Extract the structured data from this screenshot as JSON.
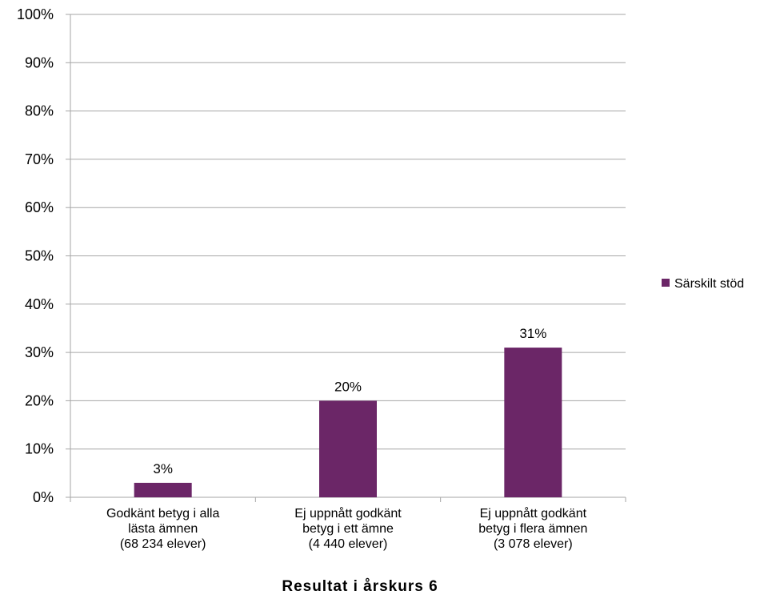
{
  "chart_data": {
    "type": "bar",
    "categories": [
      [
        "Godkänt betyg i alla",
        "lästa ämnen",
        "(68 234 elever)"
      ],
      [
        "Ej uppnått godkänt",
        "betyg i ett ämne",
        "(4 440 elever)"
      ],
      [
        "Ej uppnått godkänt",
        "betyg i flera ämnen",
        "(3 078 elever)"
      ]
    ],
    "series": [
      {
        "name": "Särskilt stöd",
        "values": [
          3,
          20,
          31
        ],
        "color": "#6b2667"
      }
    ],
    "data_labels": [
      "3%",
      "20%",
      "31%"
    ],
    "xlabel": "Resultat i årskurs 6",
    "ylabel": "",
    "ylim": [
      0,
      100
    ],
    "yticks": [
      "0%",
      "10%",
      "20%",
      "30%",
      "40%",
      "50%",
      "60%",
      "70%",
      "80%",
      "90%",
      "100%"
    ],
    "grid": true,
    "legend_position": "right",
    "gridline_color": "#a6a6a6"
  }
}
